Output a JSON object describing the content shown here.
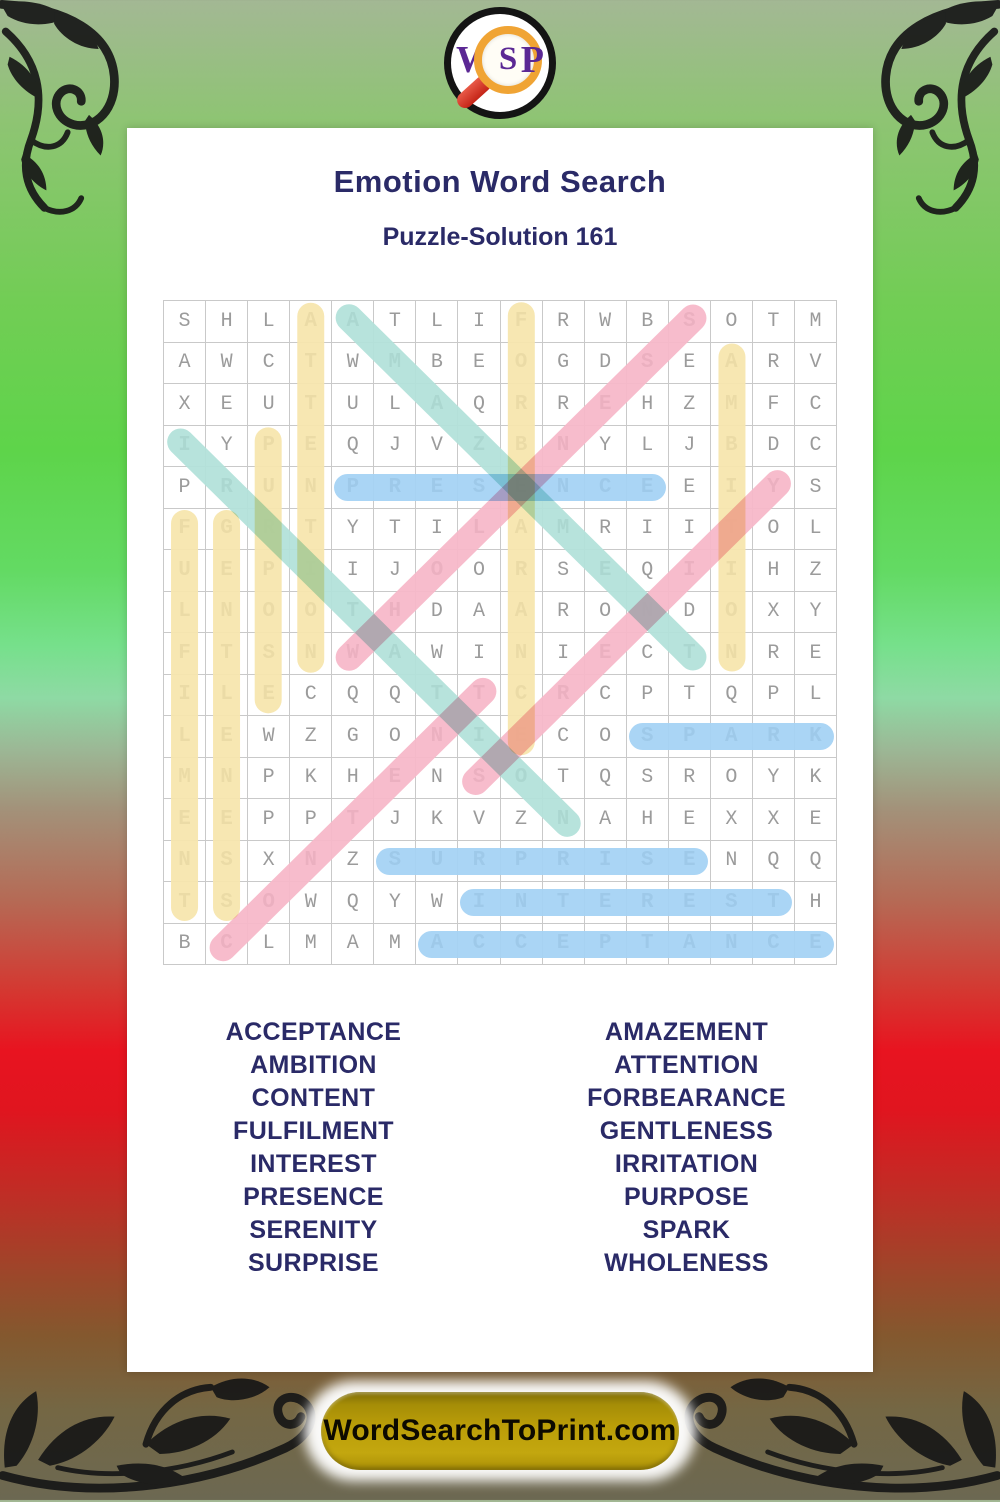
{
  "logo": {
    "w": "W",
    "s": "S",
    "p": "P"
  },
  "header": {
    "title": "Emotion Word Search",
    "subtitle": "Puzzle-Solution 161"
  },
  "grid": {
    "size": 16,
    "rows": [
      "SHLAATLIFRWBSOTM",
      "AWCTWMBEOGDSEARV",
      "XEUTULAQRREHZMFC",
      "IYPEQJVZBNYLJBDC",
      "PRUNPRESENCEEIYS",
      "FGRTYTILAMRIITOL",
      "UEPIIJOORSEQIIHZ",
      "LNOOTHDAARONDOXY",
      "FTSNWAWINIECTNRE",
      "ILECQQTTCRCPTQPL",
      "LEWZGONIECOSPARK",
      "MNPKHENSOTQSROYK",
      "EEPPTJKVZNAHEXXE",
      "NSXNZSURPRISENQQ",
      "TSOWQYWINTERESTH",
      "BCLMAMACCEPTANCE"
    ],
    "words": [
      {
        "word": "ACCEPTANCE",
        "r1": 16,
        "c1": 7,
        "r2": 16,
        "c2": 16,
        "color": "blue"
      },
      {
        "word": "AMAZEMENT",
        "r1": 1,
        "c1": 5,
        "r2": 9,
        "c2": 13,
        "color": "teal"
      },
      {
        "word": "AMBITION",
        "r1": 2,
        "c1": 14,
        "r2": 9,
        "c2": 14,
        "color": "yellow"
      },
      {
        "word": "ATTENTION",
        "r1": 1,
        "c1": 4,
        "r2": 9,
        "c2": 4,
        "color": "yellow"
      },
      {
        "word": "CONTENT",
        "r1": 16,
        "c1": 2,
        "r2": 10,
        "c2": 8,
        "color": "pink"
      },
      {
        "word": "FORBEARANCE",
        "r1": 1,
        "c1": 9,
        "r2": 11,
        "c2": 9,
        "color": "yellow"
      },
      {
        "word": "FULFILMENT",
        "r1": 6,
        "c1": 1,
        "r2": 15,
        "c2": 1,
        "color": "yellow"
      },
      {
        "word": "GENTLENESS",
        "r1": 6,
        "c1": 2,
        "r2": 15,
        "c2": 2,
        "color": "yellow"
      },
      {
        "word": "INTEREST",
        "r1": 15,
        "c1": 8,
        "r2": 15,
        "c2": 15,
        "color": "blue"
      },
      {
        "word": "IRRITATION",
        "r1": 4,
        "c1": 1,
        "r2": 13,
        "c2": 10,
        "color": "teal"
      },
      {
        "word": "PRESENCE",
        "r1": 5,
        "c1": 5,
        "r2": 5,
        "c2": 12,
        "color": "blue"
      },
      {
        "word": "PURPOSE",
        "r1": 4,
        "c1": 3,
        "r2": 10,
        "c2": 3,
        "color": "yellow"
      },
      {
        "word": "SERENITY",
        "r1": 12,
        "c1": 8,
        "r2": 5,
        "c2": 15,
        "color": "pink"
      },
      {
        "word": "SPARK",
        "r1": 11,
        "c1": 12,
        "r2": 11,
        "c2": 16,
        "color": "blue"
      },
      {
        "word": "SURPRISE",
        "r1": 14,
        "c1": 6,
        "r2": 14,
        "c2": 13,
        "color": "blue"
      },
      {
        "word": "WHOLENESS",
        "r1": 9,
        "c1": 5,
        "r2": 1,
        "c2": 13,
        "color": "pink"
      }
    ]
  },
  "word_list": {
    "left": [
      "ACCEPTANCE",
      "AMBITION",
      "CONTENT",
      "FULFILMENT",
      "INTEREST",
      "PRESENCE",
      "SERENITY",
      "SURPRISE"
    ],
    "right": [
      "AMAZEMENT",
      "ATTENTION",
      "FORBEARANCE",
      "GENTLENESS",
      "IRRITATION",
      "PURPOSE",
      "SPARK",
      "WHOLENESS"
    ]
  },
  "footer": {
    "site": "WordSearchToPrint.com"
  },
  "colors": {
    "highlight_blue": "#a6d3f5",
    "highlight_yellow": "#f7e6ae",
    "highlight_teal": "#b3e2da",
    "highlight_pink": "#f7b9c9",
    "title_navy": "#2a2a67",
    "accent_gold": "#bb9e08"
  }
}
